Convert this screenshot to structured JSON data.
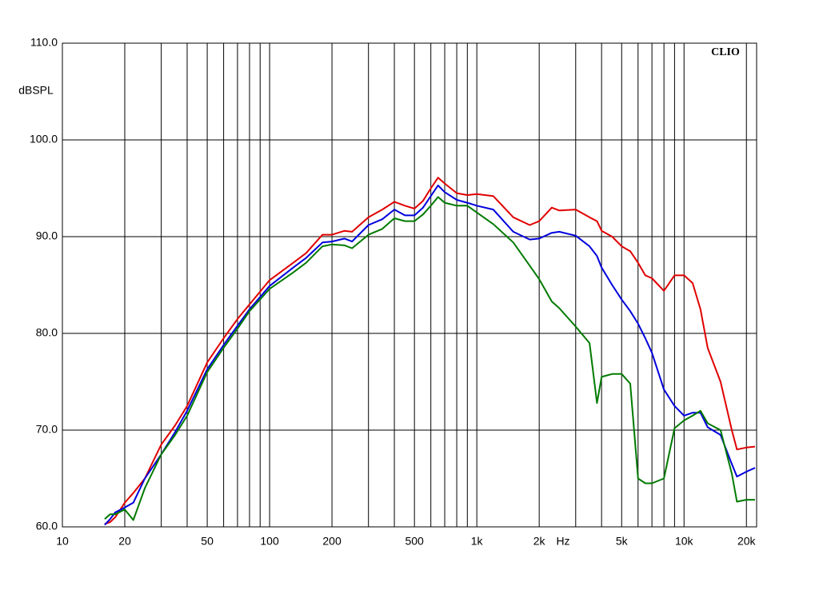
{
  "chart_data": {
    "type": "line",
    "y_label": "dBSPL",
    "x_unit": "Hz",
    "annotation": "CLIO",
    "xscale": "log",
    "grid": true,
    "xlim": [
      10,
      22400
    ],
    "ylim": [
      60,
      110
    ],
    "yticks": [
      {
        "value": 60,
        "label": "60.0"
      },
      {
        "value": 70,
        "label": "70.0"
      },
      {
        "value": 80,
        "label": "80.0"
      },
      {
        "value": 90,
        "label": "90.0"
      },
      {
        "value": 100,
        "label": "100.0"
      },
      {
        "value": 110,
        "label": "110.0"
      }
    ],
    "xticks": [
      10,
      20,
      50,
      100,
      200,
      500,
      {
        "value": 1000,
        "label": "1k"
      },
      {
        "value": 2000,
        "label": "2k"
      },
      {
        "value": 5000,
        "label": "5k"
      },
      {
        "value": 10000,
        "label": "10k"
      },
      {
        "value": 20000,
        "label": "20k"
      }
    ],
    "xminor": [
      30,
      40,
      60,
      70,
      80,
      90,
      300,
      400,
      600,
      700,
      800,
      900,
      3000,
      4000,
      6000,
      7000,
      8000,
      9000
    ],
    "x": [
      16,
      17,
      18,
      20,
      22,
      25,
      30,
      35,
      40,
      50,
      60,
      70,
      80,
      100,
      130,
      150,
      180,
      200,
      230,
      250,
      300,
      350,
      400,
      450,
      500,
      550,
      600,
      650,
      700,
      800,
      900,
      1000,
      1200,
      1500,
      1800,
      2000,
      2300,
      2500,
      3000,
      3500,
      3800,
      4000,
      4500,
      5000,
      5500,
      6000,
      6500,
      7000,
      8000,
      9000,
      10000,
      11000,
      12000,
      13000,
      15000,
      17000,
      18000,
      20000,
      22000
    ],
    "series": [
      {
        "color": "#e00000",
        "values": [
          60.3,
          60.5,
          61,
          62.5,
          63.5,
          65,
          68.5,
          70.5,
          72.5,
          77,
          79.5,
          81.5,
          83,
          85.5,
          87.3,
          88.3,
          90.2,
          90.2,
          90.6,
          90.5,
          92,
          92.8,
          93.6,
          93.2,
          92.9,
          93.7,
          95,
          96.1,
          95.5,
          94.5,
          94.3,
          94.4,
          94.2,
          92,
          91.2,
          91.6,
          93,
          92.7,
          92.8,
          92,
          91.6,
          90.6,
          90,
          89,
          88.5,
          87.3,
          86,
          85.7,
          84.4,
          86,
          86,
          85.2,
          82.5,
          78.5,
          75,
          70,
          68,
          68.2,
          68.3
        ]
      },
      {
        "color": "#0000dd",
        "values": [
          60.2,
          60.8,
          61.5,
          62,
          62.5,
          65,
          67.5,
          69.8,
          72,
          76.3,
          78.8,
          80.8,
          82.5,
          84.9,
          86.8,
          87.8,
          89.4,
          89.5,
          89.8,
          89.5,
          91.2,
          91.8,
          92.8,
          92.2,
          92.2,
          93,
          94.2,
          95.3,
          94.6,
          93.8,
          93.5,
          93.2,
          92.8,
          90.5,
          89.7,
          89.8,
          90.4,
          90.5,
          90.1,
          89,
          88,
          86.8,
          85,
          83.5,
          82.3,
          81,
          79.5,
          78,
          74.2,
          72.5,
          71.5,
          71.8,
          71.8,
          70.3,
          69.5,
          66.5,
          65.2,
          65.7,
          66.1
        ]
      },
      {
        "color": "#007a00",
        "values": [
          60.8,
          61.3,
          61.3,
          61.8,
          60.7,
          64,
          67.5,
          69.5,
          71.5,
          76,
          78.5,
          80.5,
          82.3,
          84.6,
          86.3,
          87.3,
          89,
          89.2,
          89.1,
          88.8,
          90.2,
          90.8,
          91.9,
          91.6,
          91.6,
          92.3,
          93.2,
          94.1,
          93.5,
          93.2,
          93.2,
          92.5,
          91.3,
          89.4,
          87,
          85.6,
          83.3,
          82.6,
          80.7,
          79,
          72.8,
          75.5,
          75.8,
          75.8,
          74.8,
          65,
          64.5,
          64.5,
          65,
          70.2,
          71,
          71.5,
          72,
          70.7,
          70,
          65.5,
          62.6,
          62.8,
          62.8
        ]
      }
    ]
  }
}
